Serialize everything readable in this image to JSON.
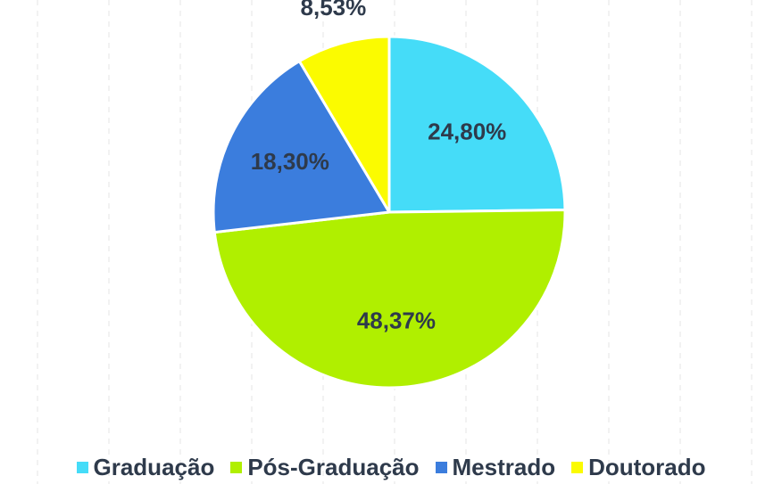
{
  "chart_data": {
    "type": "pie",
    "categories": [
      "Graduação",
      "Pós-Graduação",
      "Mestrado",
      "Doutorado"
    ],
    "values": [
      24.8,
      48.37,
      18.3,
      8.53
    ],
    "value_labels": [
      "24,80%",
      "48,37%",
      "18,30%",
      "8,53%"
    ],
    "colors": [
      "#45dcf8",
      "#b0ef00",
      "#3b7ddd",
      "#fbfb00"
    ],
    "legend": "bottom"
  }
}
